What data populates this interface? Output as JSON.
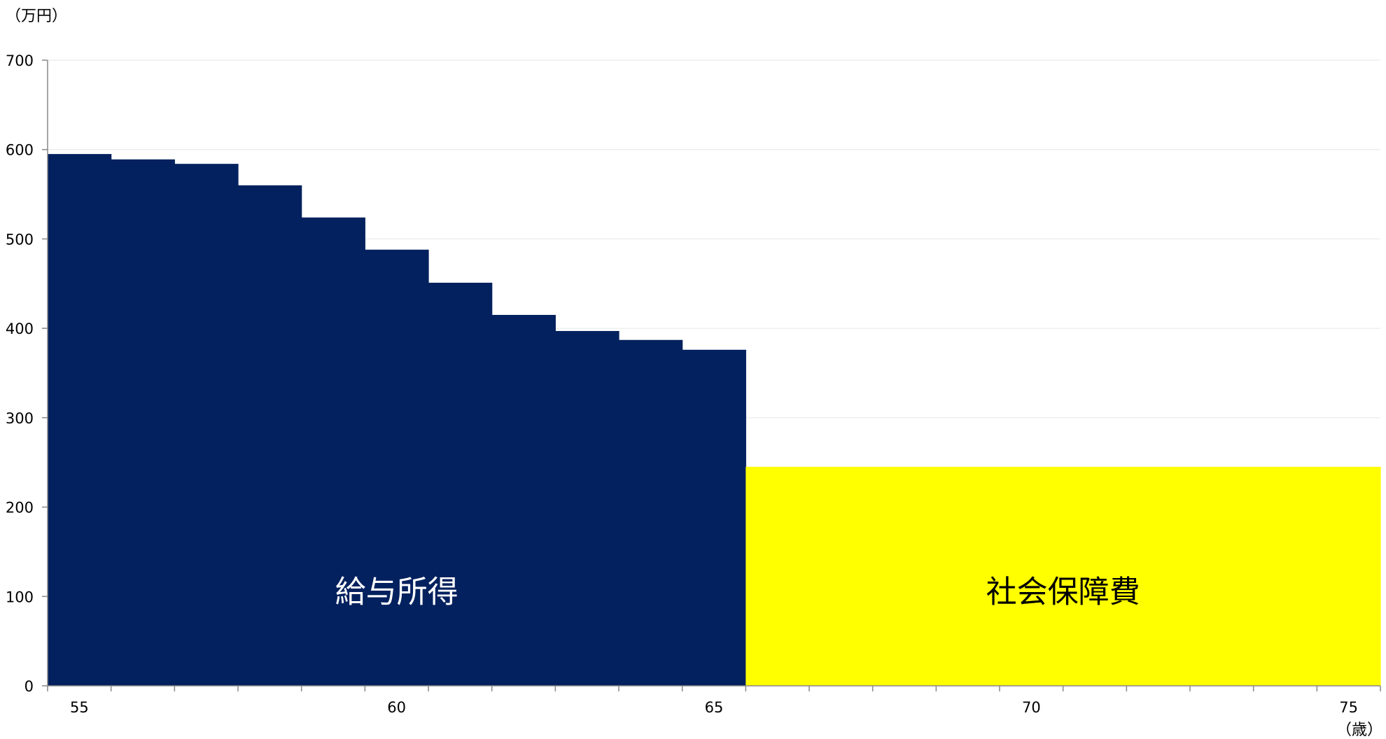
{
  "chart_data": {
    "type": "bar",
    "y_unit_label": "（万円）",
    "x_unit_label": "（歳）",
    "ylim": [
      0,
      700
    ],
    "y_ticks": [
      0,
      100,
      200,
      300,
      400,
      500,
      600,
      700
    ],
    "xlim": [
      54.5,
      75.5
    ],
    "x_ticks": [
      55,
      60,
      65,
      70,
      75
    ],
    "grid": true,
    "legend": "none",
    "series": [
      {
        "label": "給与所得",
        "color": "#03215E",
        "label_color": "#FFFFFF",
        "categories": [
          55,
          56,
          57,
          58,
          59,
          60,
          61,
          62,
          63,
          64,
          65
        ],
        "values": [
          595,
          589,
          584,
          560,
          524,
          488,
          451,
          415,
          397,
          387,
          376
        ]
      },
      {
        "label": "社会保障費",
        "color": "#FFFF00",
        "label_color": "#000000",
        "categories": [
          66,
          67,
          68,
          69,
          70,
          71,
          72,
          73,
          74,
          75
        ],
        "values": [
          245,
          245,
          245,
          245,
          245,
          245,
          245,
          245,
          245,
          245
        ]
      }
    ]
  }
}
